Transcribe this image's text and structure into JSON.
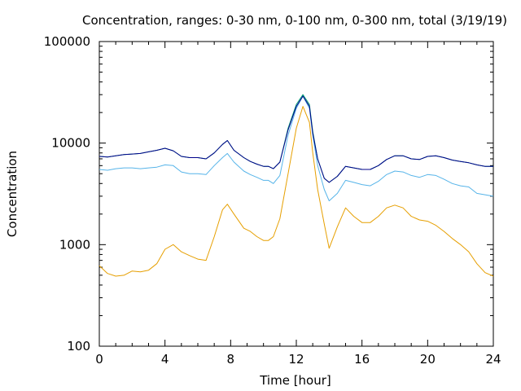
{
  "chart_data": {
    "type": "line",
    "title": "Concentration, ranges: 0-30 nm, 0-100 nm, 0-300 nm, total (3/19/19)",
    "xlabel": "Time [hour]",
    "ylabel": "Concentration",
    "xlim": [
      0,
      24
    ],
    "ylim": [
      100,
      100000
    ],
    "yscale": "log",
    "xticks": [
      0,
      4,
      8,
      12,
      16,
      20,
      24
    ],
    "xtick_labels": [
      "0",
      "4",
      "8",
      "12",
      "16",
      "20",
      "24"
    ],
    "yticks": [
      100,
      1000,
      10000,
      100000
    ],
    "ytick_labels": [
      "100",
      "1000",
      "10000",
      "100000"
    ],
    "grid": false,
    "series": [
      {
        "color": "#e69f00",
        "x": [
          0,
          0.5,
          1,
          1.5,
          2,
          2.5,
          3,
          3.5,
          4,
          4.5,
          5,
          5.5,
          6,
          6.5,
          7,
          7.5,
          7.8,
          8.2,
          8.8,
          9.2,
          9.6,
          10,
          10.3,
          10.6,
          11,
          11.5,
          12,
          12.4,
          12.8,
          13,
          13.3,
          13.7,
          14,
          14.5,
          15,
          15.5,
          16,
          16.5,
          17,
          17.5,
          18,
          18.5,
          19,
          19.5,
          20,
          20.5,
          21,
          21.5,
          22,
          22.5,
          23,
          23.5,
          24
        ],
        "values": [
          620,
          520,
          490,
          500,
          550,
          540,
          560,
          650,
          900,
          1000,
          850,
          780,
          720,
          700,
          1200,
          2200,
          2500,
          2000,
          1450,
          1350,
          1200,
          1100,
          1100,
          1200,
          1800,
          5000,
          14000,
          23000,
          16000,
          8000,
          3500,
          1600,
          920,
          1500,
          2300,
          1900,
          1650,
          1650,
          1900,
          2300,
          2450,
          2300,
          1900,
          1750,
          1700,
          1550,
          1350,
          1150,
          1000,
          850,
          650,
          530,
          490
        ]
      },
      {
        "color": "#56b4e9",
        "x": [
          0,
          0.5,
          1,
          1.5,
          2,
          2.5,
          3,
          3.5,
          4,
          4.5,
          5,
          5.5,
          6,
          6.5,
          7,
          7.5,
          7.8,
          8.2,
          8.8,
          9.2,
          9.6,
          10,
          10.3,
          10.6,
          11,
          11.5,
          12,
          12.4,
          12.8,
          13,
          13.3,
          13.7,
          14,
          14.5,
          15,
          15.5,
          16,
          16.5,
          17,
          17.5,
          18,
          18.5,
          19,
          19.5,
          20,
          20.5,
          21,
          21.5,
          22,
          22.5,
          23,
          23.5,
          24
        ],
        "values": [
          5500,
          5400,
          5600,
          5700,
          5700,
          5600,
          5700,
          5800,
          6100,
          6000,
          5200,
          5000,
          5000,
          4900,
          6000,
          7200,
          7900,
          6500,
          5300,
          4900,
          4600,
          4300,
          4300,
          4000,
          4800,
          12000,
          22000,
          29000,
          22000,
          12000,
          6000,
          3500,
          2700,
          3200,
          4300,
          4100,
          3900,
          3800,
          4200,
          4900,
          5300,
          5200,
          4800,
          4600,
          4900,
          4800,
          4400,
          4000,
          3800,
          3700,
          3200,
          3100,
          3000
        ]
      },
      {
        "color": "#009e73",
        "x": [
          0,
          0.5,
          1,
          1.5,
          2,
          2.5,
          3,
          3.5,
          4,
          4.5,
          5,
          5.5,
          6,
          6.5,
          7,
          7.5,
          7.8,
          8.2,
          8.8,
          9.2,
          9.6,
          10,
          10.3,
          10.6,
          11,
          11.5,
          12,
          12.4,
          12.8,
          13,
          13.3,
          13.7,
          14,
          14.5,
          15,
          15.5,
          16,
          16.5,
          17,
          17.5,
          18,
          18.5,
          19,
          19.5,
          20,
          20.5,
          21,
          21.5,
          22,
          22.5,
          23,
          23.5,
          24
        ],
        "values": [
          7400,
          7300,
          7500,
          7700,
          7800,
          7900,
          8200,
          8500,
          8900,
          8400,
          7400,
          7200,
          7200,
          7000,
          8000,
          9700,
          10600,
          8500,
          7200,
          6600,
          6200,
          5900,
          5900,
          5600,
          6500,
          14000,
          24000,
          30000,
          24000,
          13000,
          7000,
          4500,
          4100,
          4700,
          5900,
          5700,
          5500,
          5500,
          6000,
          6900,
          7500,
          7500,
          7000,
          6900,
          7400,
          7500,
          7200,
          6800,
          6600,
          6400,
          6100,
          5900,
          5900
        ]
      },
      {
        "color": "#00008b",
        "x": [
          0,
          0.5,
          1,
          1.5,
          2,
          2.5,
          3,
          3.5,
          4,
          4.5,
          5,
          5.5,
          6,
          6.5,
          7,
          7.5,
          7.8,
          8.2,
          8.8,
          9.2,
          9.6,
          10,
          10.3,
          10.6,
          11,
          11.5,
          12,
          12.4,
          12.8,
          13,
          13.3,
          13.7,
          14,
          14.5,
          15,
          15.5,
          16,
          16.5,
          17,
          17.5,
          18,
          18.5,
          19,
          19.5,
          20,
          20.5,
          21,
          21.5,
          22,
          22.5,
          23,
          23.5,
          24
        ],
        "values": [
          7400,
          7300,
          7500,
          7700,
          7800,
          7900,
          8200,
          8500,
          8900,
          8400,
          7400,
          7200,
          7200,
          7000,
          8000,
          9700,
          10600,
          8500,
          7200,
          6600,
          6200,
          5900,
          5900,
          5600,
          6500,
          13500,
          23000,
          29000,
          23000,
          12500,
          7000,
          4500,
          4100,
          4700,
          5900,
          5700,
          5500,
          5500,
          6000,
          6900,
          7500,
          7500,
          7000,
          6900,
          7400,
          7500,
          7200,
          6800,
          6600,
          6400,
          6100,
          5900,
          5900
        ]
      }
    ]
  }
}
